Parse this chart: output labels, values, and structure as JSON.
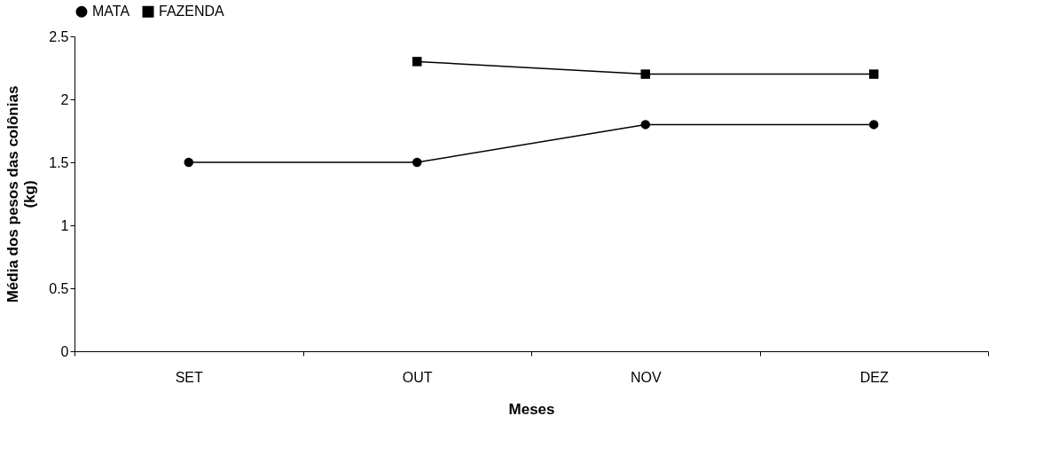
{
  "chart_data": {
    "type": "line",
    "xlabel": "Meses",
    "ylabel": "Média dos pesos das colônias\n(kg)",
    "categories": [
      "SET",
      "OUT",
      "NOV",
      "DEZ"
    ],
    "series": [
      {
        "name": "MATA",
        "color": "#000000",
        "marker": "circle",
        "values": [
          1.5,
          1.5,
          1.8,
          1.8
        ]
      },
      {
        "name": "FAZENDA",
        "color": "#000000",
        "marker": "square",
        "values": [
          null,
          2.3,
          2.2,
          2.2
        ]
      }
    ],
    "ylim": [
      0,
      2.5
    ],
    "yticks": [
      0,
      0.5,
      1,
      1.5,
      2,
      2.5
    ],
    "grid": false,
    "legend": "top",
    "line_style": "solid"
  }
}
